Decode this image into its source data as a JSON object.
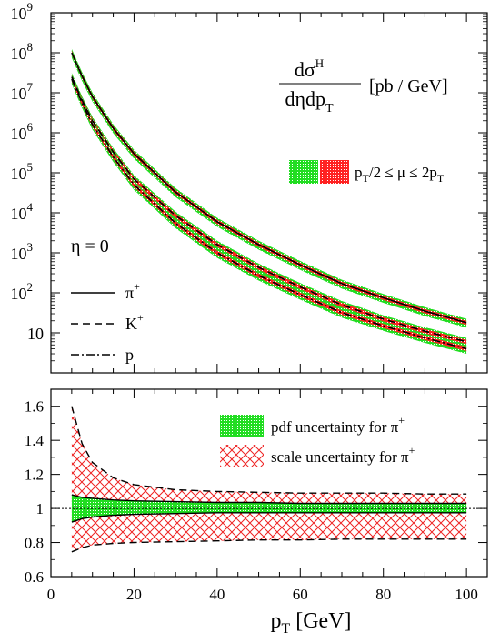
{
  "chart_data": [
    {
      "type": "line",
      "y_scale": "log",
      "xlim": [
        0,
        105
      ],
      "ylim": [
        1,
        1000000000
      ],
      "y_ticks": [
        {
          "base": "10",
          "exp": "9"
        },
        {
          "base": "10",
          "exp": "8"
        },
        {
          "base": "10",
          "exp": "7"
        },
        {
          "base": "10",
          "exp": "6"
        },
        {
          "base": "10",
          "exp": "5"
        },
        {
          "base": "10",
          "exp": "4"
        },
        {
          "base": "10",
          "exp": "3"
        },
        {
          "base": "10",
          "exp": "2"
        },
        {
          "base": "10",
          "exp": ""
        }
      ],
      "title": {
        "num_main": "dσ",
        "num_sup": "H",
        "den_main": "dηdp",
        "den_sub": "T",
        "unit": "[pb / GeV]"
      },
      "eta_label": "η = 0",
      "band_legend": {
        "pre": "p",
        "sub": "T",
        "post": "/2 ≤ μ ≤ 2p",
        "sub2": "T"
      },
      "pt": [
        5,
        7.5,
        10,
        15,
        20,
        30,
        40,
        50,
        60,
        70,
        80,
        90,
        100
      ],
      "series": [
        {
          "name": "π",
          "name_sup": "+",
          "style": "solid",
          "values": [
            100000000.0,
            26000000.0,
            8000000.0,
            1300000.0,
            300000.0,
            33000.0,
            6000,
            1600,
            500,
            170,
            75,
            35,
            18
          ]
        },
        {
          "name": "K",
          "name_sup": "+",
          "style": "dashed",
          "values": [
            25000000.0,
            6500000.0,
            2000000.0,
            330000.0,
            70000.0,
            8500.0,
            1600,
            430,
            140,
            50,
            22,
            11,
            6
          ]
        },
        {
          "name": "p",
          "name_sup": "",
          "style": "dashdot",
          "values": [
            22000000.0,
            5500000.0,
            1600000.0,
            250000.0,
            50000.0,
            5500.0,
            1000,
            270,
            90,
            32,
            15,
            7.5,
            4
          ]
        }
      ],
      "pdf_band_fraction": 0.25,
      "scale_band_fraction": 0.12
    },
    {
      "type": "area",
      "xlim": [
        0,
        105
      ],
      "ylim": [
        0.6,
        1.7
      ],
      "x_ticks": [
        "0",
        "20",
        "40",
        "60",
        "80",
        "100"
      ],
      "y_ticks": [
        "0.6",
        "0.8",
        "1",
        "1.2",
        "1.4",
        "1.6"
      ],
      "xlabel": {
        "main": "p",
        "sub": "T",
        "post": " [GeV]"
      },
      "pt": [
        5,
        7.5,
        10,
        15,
        20,
        30,
        40,
        50,
        60,
        70,
        80,
        90,
        100
      ],
      "scale_upper": [
        1.6,
        1.38,
        1.27,
        1.18,
        1.14,
        1.11,
        1.1,
        1.095,
        1.09,
        1.09,
        1.09,
        1.085,
        1.085
      ],
      "scale_lower": [
        0.745,
        0.77,
        0.785,
        0.795,
        0.8,
        0.805,
        0.81,
        0.815,
        0.815,
        0.82,
        0.82,
        0.82,
        0.82
      ],
      "pdf_upper": [
        1.08,
        1.065,
        1.06,
        1.05,
        1.045,
        1.04,
        1.035,
        1.035,
        1.03,
        1.03,
        1.03,
        1.03,
        1.03
      ],
      "pdf_lower": [
        0.92,
        0.94,
        0.95,
        0.96,
        0.965,
        0.97,
        0.975,
        0.975,
        0.975,
        0.975,
        0.975,
        0.975,
        0.975
      ],
      "reference": 1,
      "legend": [
        {
          "text": "pdf uncertainty for π",
          "sup": "+"
        },
        {
          "text": "scale uncertainty for π",
          "sup": "+"
        }
      ]
    }
  ],
  "colors": {
    "pdf_band": "#22dd22",
    "scale_band": "#ff2222",
    "axes": "#000000"
  }
}
